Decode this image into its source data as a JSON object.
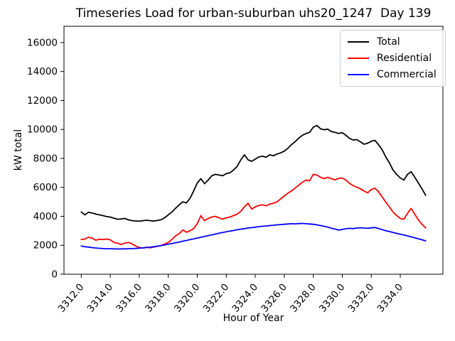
{
  "title": "Timeseries Load for urban-suburban uhs20_1247  Day 139",
  "chart_data": {
    "type": "line",
    "title": "Timeseries Load for urban-suburban uhs20_1247  Day 139",
    "xlabel": "Hour of Year",
    "ylabel": "kW total",
    "xlim": [
      3310.81,
      3336.94
    ],
    "ylim": [
      0,
      17125
    ],
    "grid": false,
    "legend_position": "upper right",
    "x_tick_values": [
      3312,
      3314,
      3316,
      3318,
      3320,
      3322,
      3324,
      3326,
      3328,
      3330,
      3332,
      3334
    ],
    "x_tick_labels": [
      "3312.0",
      "3314.0",
      "3316.0",
      "3318.0",
      "3320.0",
      "3322.0",
      "3324.0",
      "3326.0",
      "3328.0",
      "3330.0",
      "3332.0",
      "3334.0"
    ],
    "y_tick_values": [
      0,
      2000,
      4000,
      6000,
      8000,
      10000,
      12000,
      14000,
      16000
    ],
    "y_tick_labels": [
      "0",
      "2000",
      "4000",
      "6000",
      "8000",
      "10000",
      "12000",
      "14000",
      "16000"
    ],
    "x": [
      3312,
      3312.25,
      3312.5,
      3312.75,
      3313,
      3313.25,
      3313.5,
      3313.75,
      3314,
      3314.25,
      3314.5,
      3314.75,
      3315,
      3315.25,
      3315.5,
      3315.75,
      3316,
      3316.25,
      3316.5,
      3316.75,
      3317,
      3317.25,
      3317.5,
      3317.75,
      3318,
      3318.25,
      3318.5,
      3318.75,
      3319,
      3319.25,
      3319.5,
      3319.75,
      3320,
      3320.25,
      3320.5,
      3320.75,
      3321,
      3321.25,
      3321.5,
      3321.75,
      3322,
      3322.25,
      3322.5,
      3322.75,
      3323,
      3323.25,
      3323.5,
      3323.75,
      3324,
      3324.25,
      3324.5,
      3324.75,
      3325,
      3325.25,
      3325.5,
      3325.75,
      3326,
      3326.25,
      3326.5,
      3326.75,
      3327,
      3327.25,
      3327.5,
      3327.75,
      3328,
      3328.25,
      3328.5,
      3328.75,
      3329,
      3329.25,
      3329.5,
      3329.75,
      3330,
      3330.25,
      3330.5,
      3330.75,
      3331,
      3331.25,
      3331.5,
      3331.75,
      3332,
      3332.25,
      3332.5,
      3332.75,
      3333,
      3333.25,
      3333.5,
      3333.75,
      3334,
      3334.25,
      3334.5,
      3334.75,
      3335,
      3335.25,
      3335.5,
      3335.75
    ],
    "series": [
      {
        "name": "Total",
        "color": "#000000",
        "values": [
          4300,
          4100,
          4280,
          4230,
          4150,
          4100,
          4050,
          3980,
          3950,
          3870,
          3800,
          3820,
          3850,
          3760,
          3700,
          3680,
          3660,
          3700,
          3730,
          3700,
          3670,
          3720,
          3760,
          3900,
          4100,
          4300,
          4550,
          4800,
          5000,
          4920,
          5250,
          5750,
          6300,
          6600,
          6250,
          6500,
          6800,
          6900,
          6850,
          6800,
          6950,
          7000,
          7200,
          7450,
          7900,
          8250,
          7900,
          7800,
          7950,
          8100,
          8150,
          8080,
          8250,
          8180,
          8300,
          8380,
          8500,
          8700,
          8950,
          9150,
          9400,
          9600,
          9720,
          9800,
          10150,
          10280,
          10050,
          9980,
          10020,
          9850,
          9800,
          9720,
          9780,
          9600,
          9380,
          9270,
          9300,
          9150,
          8980,
          9050,
          9180,
          9250,
          8950,
          8600,
          8100,
          7700,
          7200,
          6900,
          6650,
          6500,
          6900,
          7080,
          6700,
          6300,
          5900,
          5450
        ]
      },
      {
        "name": "Residential",
        "color": "#ff0000",
        "values": [
          2400,
          2430,
          2550,
          2500,
          2350,
          2420,
          2400,
          2430,
          2380,
          2200,
          2150,
          2050,
          2150,
          2200,
          2100,
          1950,
          1850,
          1800,
          1870,
          1820,
          1880,
          1920,
          1980,
          2080,
          2200,
          2400,
          2650,
          2800,
          3050,
          2900,
          3000,
          3150,
          3500,
          4050,
          3700,
          3850,
          3950,
          4000,
          3900,
          3800,
          3900,
          3950,
          4050,
          4150,
          4350,
          4650,
          4900,
          4500,
          4650,
          4750,
          4800,
          4720,
          4850,
          4900,
          5000,
          5200,
          5400,
          5600,
          5750,
          5950,
          6150,
          6350,
          6500,
          6450,
          6900,
          6850,
          6700,
          6600,
          6700,
          6600,
          6520,
          6620,
          6650,
          6500,
          6280,
          6120,
          6020,
          5900,
          5750,
          5620,
          5850,
          5940,
          5700,
          5350,
          4980,
          4650,
          4300,
          4060,
          3850,
          3800,
          4200,
          4550,
          4150,
          3750,
          3450,
          3200
        ]
      },
      {
        "name": "Commercial",
        "color": "#0000ff",
        "values": [
          1950,
          1900,
          1870,
          1840,
          1810,
          1790,
          1770,
          1760,
          1760,
          1750,
          1740,
          1750,
          1750,
          1760,
          1770,
          1780,
          1800,
          1820,
          1840,
          1870,
          1900,
          1940,
          1980,
          2020,
          2070,
          2120,
          2170,
          2220,
          2280,
          2330,
          2390,
          2440,
          2500,
          2550,
          2610,
          2660,
          2720,
          2770,
          2830,
          2880,
          2930,
          2980,
          3020,
          3070,
          3110,
          3150,
          3190,
          3220,
          3250,
          3290,
          3310,
          3330,
          3360,
          3380,
          3410,
          3430,
          3450,
          3470,
          3490,
          3480,
          3500,
          3510,
          3490,
          3470,
          3450,
          3410,
          3360,
          3310,
          3260,
          3180,
          3120,
          3050,
          3090,
          3140,
          3170,
          3150,
          3190,
          3210,
          3190,
          3170,
          3200,
          3230,
          3160,
          3080,
          3010,
          2950,
          2880,
          2820,
          2760,
          2710,
          2650,
          2580,
          2510,
          2450,
          2380,
          2300
        ]
      }
    ]
  }
}
